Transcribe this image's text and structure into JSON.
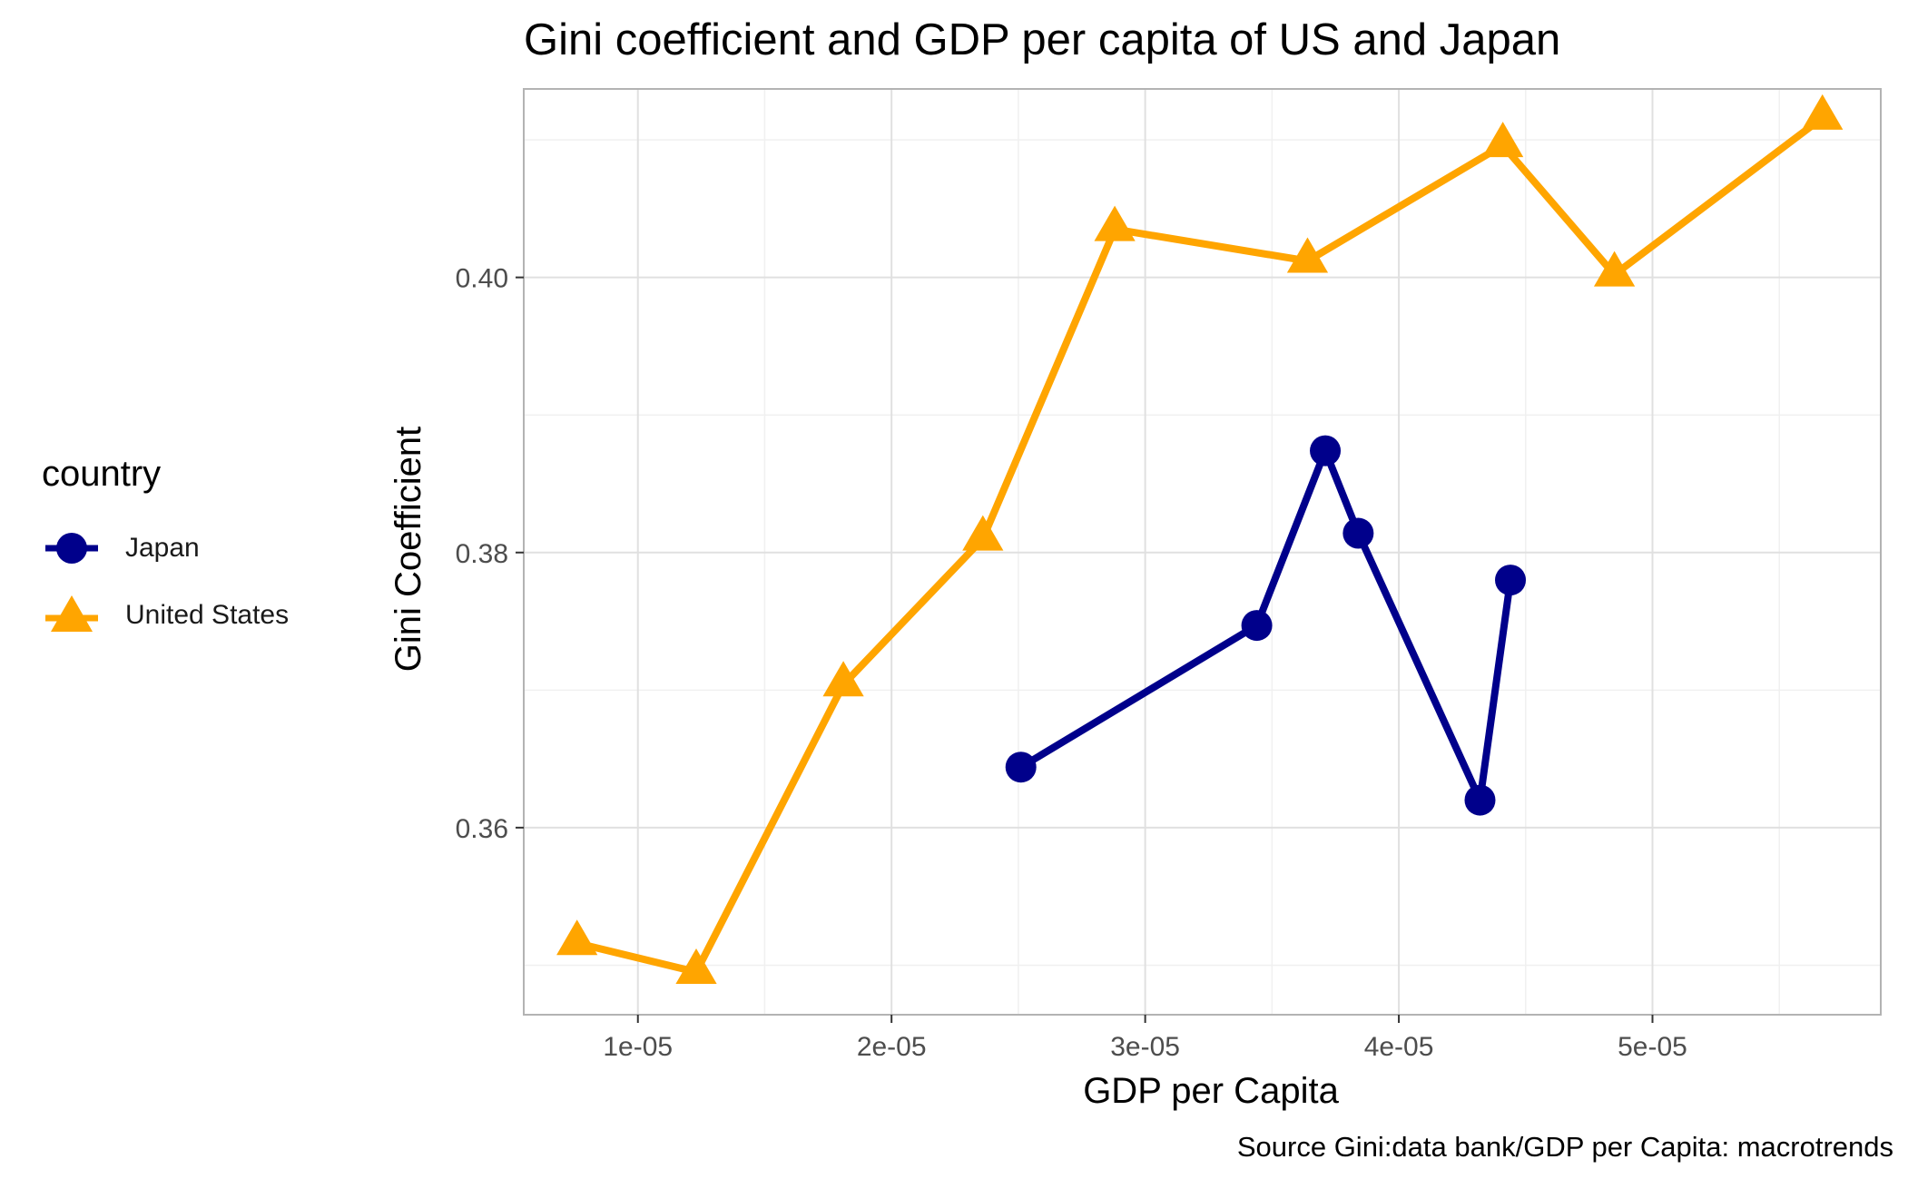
{
  "chart_data": {
    "type": "line",
    "title": "Gini coefficient and GDP per capita of US and Japan",
    "xlabel": "GDP per Capita",
    "ylabel": "Gini Coefficient",
    "caption": "Source  Gini:data bank/GDP per Capita: macrotrends",
    "xlim": [
      5.5e-06,
      5.9e-05
    ],
    "ylim": [
      0.3464,
      0.4137
    ],
    "x_ticks": [
      1e-05,
      2e-05,
      3e-05,
      4e-05,
      5e-05
    ],
    "x_tick_labels": [
      "1e-05",
      "2e-05",
      "3e-05",
      "4e-05",
      "5e-05"
    ],
    "y_ticks": [
      0.36,
      0.38,
      0.4
    ],
    "y_tick_labels": [
      "0.36",
      "0.38",
      "0.40"
    ],
    "grid": true,
    "legend": {
      "title": "country",
      "position": "left"
    },
    "series": [
      {
        "name": "Japan",
        "color": "#00008B",
        "marker": "circle",
        "x": [
          2.51e-05,
          3.44e-05,
          3.71e-05,
          3.84e-05,
          4.32e-05,
          4.44e-05
        ],
        "y": [
          0.3644,
          0.3747,
          0.3874,
          0.3814,
          0.362,
          0.378
        ]
      },
      {
        "name": "United States",
        "color": "#FFA500",
        "marker": "triangle",
        "x": [
          7.6e-06,
          1.23e-05,
          1.81e-05,
          2.36e-05,
          2.88e-05,
          3.64e-05,
          4.41e-05,
          4.85e-05,
          5.67e-05
        ],
        "y": [
          0.3516,
          0.3495,
          0.3704,
          0.381,
          0.4035,
          0.4012,
          0.4096,
          0.4002,
          0.4116
        ]
      }
    ]
  }
}
